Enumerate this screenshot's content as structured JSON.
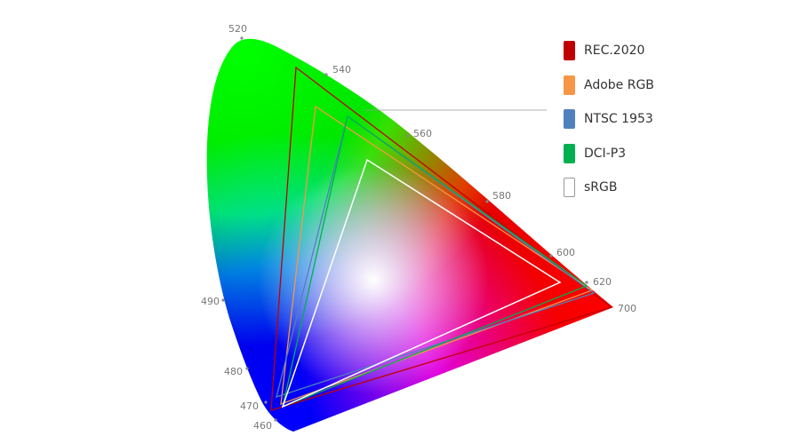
{
  "diagram": {
    "wavelength_labels": [
      "520",
      "540",
      "560",
      "580",
      "600",
      "620",
      "700",
      "490",
      "480",
      "470",
      "460"
    ]
  },
  "legend": [
    {
      "label": "REC.2020",
      "color": "#c00000"
    },
    {
      "label": "Adobe RGB",
      "color": "#f79646"
    },
    {
      "label": "NTSC 1953",
      "color": "#4f81bd"
    },
    {
      "label": "DCI-P3",
      "color": "#00b050"
    },
    {
      "label": "sRGB",
      "color": "#ffffff"
    }
  ]
}
